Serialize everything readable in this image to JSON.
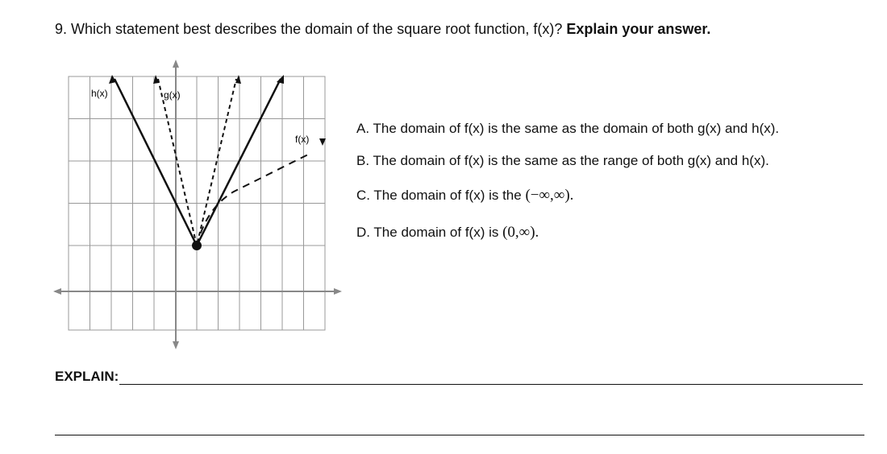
{
  "question": {
    "number": "9.",
    "text": "Which statement best describes the domain of the square root function, f(x)?",
    "emphasis": "Explain your answer."
  },
  "graph": {
    "labels": [
      "h(x)",
      "g(x)",
      "f(x)"
    ]
  },
  "options": [
    {
      "letter": "A.",
      "text": "The domain of f(x) is the same as the domain of both g(x) and h(x)."
    },
    {
      "letter": "B.",
      "text": "The domain of f(x) is the same as the range of both g(x) and h(x)."
    },
    {
      "letter": "C.",
      "text": "The domain of f(x) is the",
      "math": "(−∞,∞)."
    },
    {
      "letter": "D.",
      "text": "The domain of f(x) is",
      "math": "(0,∞)."
    }
  ],
  "explain": {
    "label": "EXPLAIN:"
  }
}
